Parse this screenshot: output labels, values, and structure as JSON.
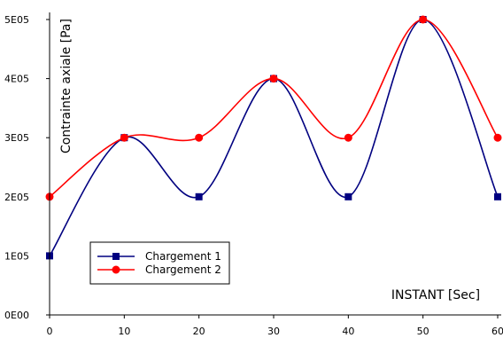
{
  "chart_data": {
    "type": "line",
    "title": "",
    "xlabel": "INSTANT [Sec]",
    "ylabel": "Contrainte axiale [Pa]",
    "x": [
      0,
      10,
      20,
      30,
      40,
      50,
      60
    ],
    "xlim": [
      0,
      60
    ],
    "ylim": [
      0,
      500000
    ],
    "x_ticks": [
      "0",
      "10",
      "20",
      "30",
      "40",
      "50",
      "60"
    ],
    "y_ticks": [
      "0E00",
      "1E05",
      "2E05",
      "3E05",
      "4E05",
      "5E05"
    ],
    "grid": false,
    "legend_position": "bottom-left",
    "series": [
      {
        "name": "Chargement 1",
        "color": "#000080",
        "marker": "square",
        "values": [
          100000,
          300000,
          200000,
          400000,
          200000,
          500000,
          200000
        ]
      },
      {
        "name": "Chargement 2",
        "color": "#ff0000",
        "marker": "circle",
        "values": [
          200000,
          300000,
          300000,
          400000,
          300000,
          500000,
          300000
        ]
      }
    ]
  }
}
